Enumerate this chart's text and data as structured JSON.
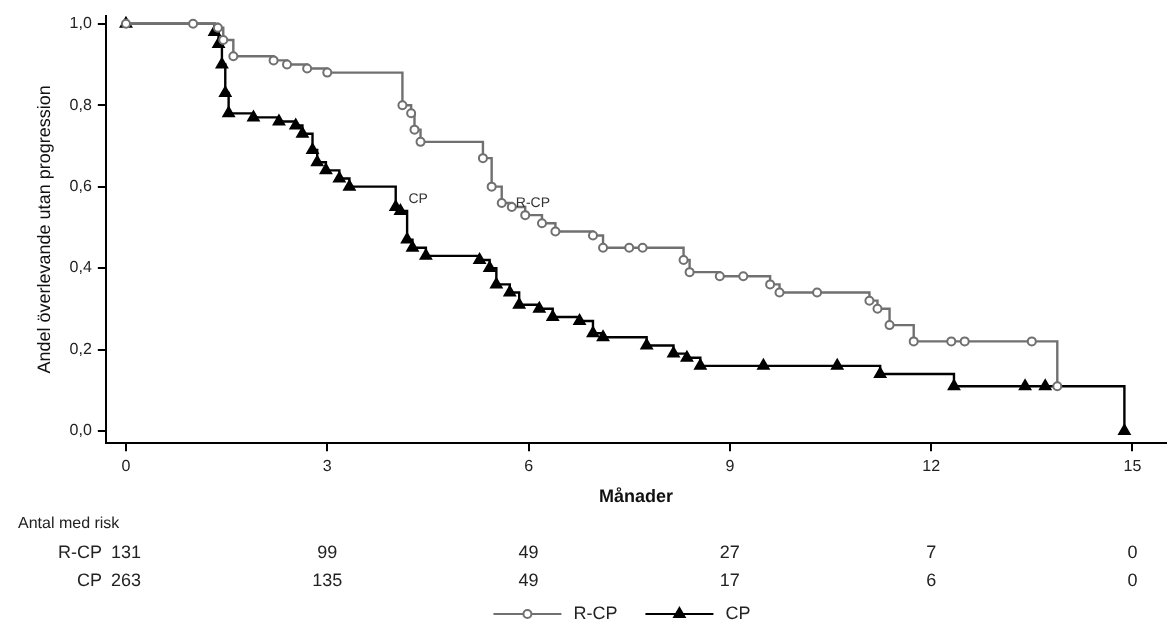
{
  "chart_data": {
    "type": "step",
    "xlabel": "Månader",
    "ylabel": "Andel överlevande utan progression",
    "xlim": [
      -0.3,
      15.5
    ],
    "xticks": [
      0,
      3,
      6,
      9,
      12,
      15
    ],
    "ylim": [
      -0.03,
      1.02
    ],
    "yticks": [
      {
        "value": 0,
        "label": "0,0"
      },
      {
        "value": 0.2,
        "label": "0,2"
      },
      {
        "value": 0.4,
        "label": "0,4"
      },
      {
        "value": 0.6,
        "label": "0,6"
      },
      {
        "value": 0.8,
        "label": "0,8"
      },
      {
        "value": 1,
        "label": "1,0"
      }
    ],
    "grid": false,
    "legend": "bottom",
    "series": [
      {
        "name": "R-CP",
        "color": "#707070",
        "marker": "circle",
        "x": [
          0,
          1.0,
          1.37,
          1.45,
          1.6,
          2.2,
          2.4,
          2.7,
          3.0,
          4.12,
          4.25,
          4.3,
          4.39,
          5.32,
          5.45,
          5.6,
          5.75,
          5.95,
          6.2,
          6.4,
          6.96,
          7.11,
          7.5,
          7.7,
          8.31,
          8.4,
          8.85,
          9.2,
          9.6,
          9.74,
          10.3,
          11.08,
          11.2,
          11.38,
          11.74,
          12.3,
          12.5,
          13.5,
          13.88
        ],
        "values": [
          1,
          1,
          0.99,
          0.96,
          0.92,
          0.91,
          0.9,
          0.89,
          0.88,
          0.8,
          0.78,
          0.74,
          0.71,
          0.67,
          0.6,
          0.56,
          0.55,
          0.53,
          0.51,
          0.49,
          0.48,
          0.45,
          0.45,
          0.45,
          0.42,
          0.39,
          0.38,
          0.38,
          0.36,
          0.34,
          0.34,
          0.32,
          0.3,
          0.26,
          0.22,
          0.22,
          0.22,
          0.22,
          0.11
        ]
      },
      {
        "name": "CP",
        "color": "#000000",
        "marker": "triangle",
        "x": [
          0,
          1.32,
          1.38,
          1.43,
          1.48,
          1.53,
          1.9,
          2.28,
          2.53,
          2.63,
          2.78,
          2.85,
          2.98,
          3.18,
          3.33,
          4.02,
          4.09,
          4.19,
          4.27,
          4.47,
          5.27,
          5.42,
          5.52,
          5.72,
          5.86,
          6.16,
          6.36,
          6.76,
          6.96,
          7.11,
          7.76,
          8.16,
          8.36,
          8.56,
          9.5,
          10.6,
          11.24,
          12.34,
          13.4,
          13.7,
          14.88
        ],
        "values": [
          1,
          0.98,
          0.95,
          0.9,
          0.83,
          0.78,
          0.77,
          0.76,
          0.75,
          0.73,
          0.69,
          0.66,
          0.64,
          0.62,
          0.6,
          0.55,
          0.54,
          0.47,
          0.45,
          0.43,
          0.42,
          0.4,
          0.36,
          0.34,
          0.31,
          0.3,
          0.28,
          0.27,
          0.24,
          0.23,
          0.21,
          0.19,
          0.18,
          0.16,
          0.16,
          0.16,
          0.14,
          0.11,
          0.11,
          0.11,
          0
        ]
      }
    ],
    "annotations": [
      {
        "text": "CP",
        "x": 4.15,
        "y": 0.57
      },
      {
        "text": "R-CP",
        "x": 5.75,
        "y": 0.56
      },
      "Antal med risk",
      "R-CP",
      "131",
      "99",
      "49",
      "27",
      "7",
      "0",
      "CP",
      "263",
      "135",
      "49",
      "17",
      "6",
      "0"
    ]
  }
}
